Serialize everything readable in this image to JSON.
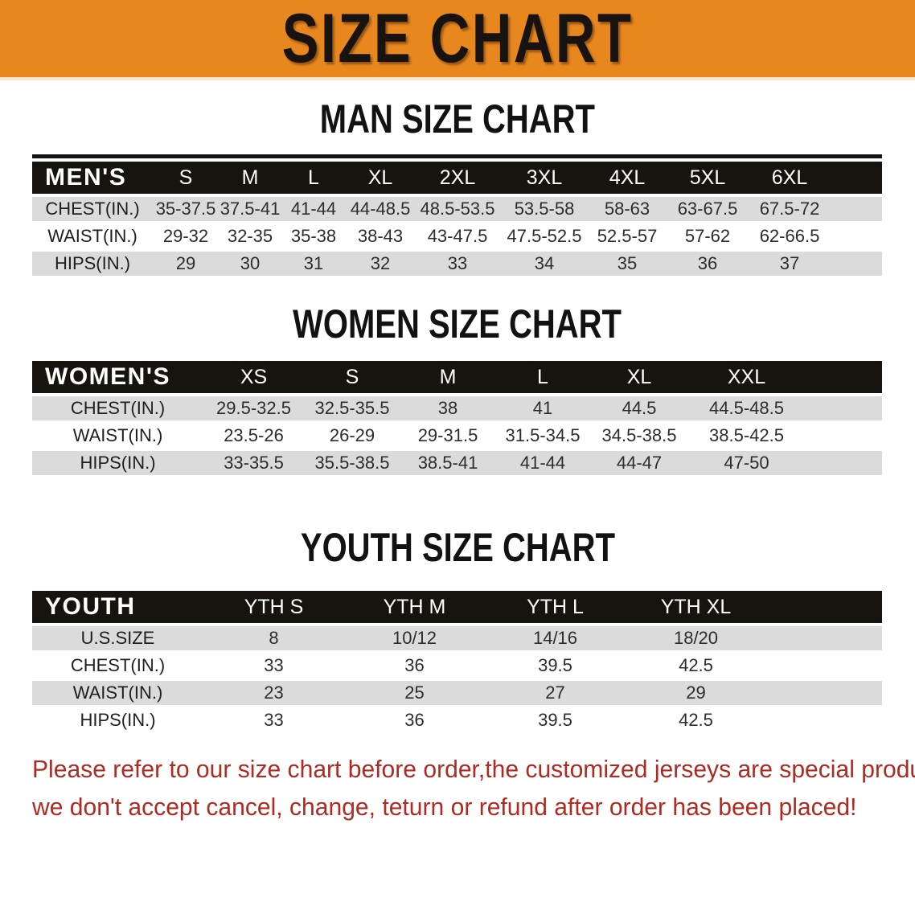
{
  "banner": {
    "title": "SIZE CHART"
  },
  "colors": {
    "banner_bg": "#E8871E",
    "header_band": "#17130F",
    "row_alt": "#DBDBDB",
    "footer_text": "#AD2B23"
  },
  "sections": [
    {
      "heading": "MAN SIZE CHART",
      "table": {
        "title": "MEN'S",
        "columns": [
          "S",
          "M",
          "L",
          "XL",
          "2XL",
          "3XL",
          "4XL",
          "5XL",
          "6XL"
        ],
        "rows": [
          {
            "label": "CHEST(IN.)",
            "values": [
              "35-37.5",
              "37.5-41",
              "41-44",
              "44-48.5",
              "48.5-53.5",
              "53.5-58",
              "58-63",
              "63-67.5",
              "67.5-72"
            ]
          },
          {
            "label": "WAIST(IN.)",
            "values": [
              "29-32",
              "32-35",
              "35-38",
              "38-43",
              "43-47.5",
              "47.5-52.5",
              "52.5-57",
              "57-62",
              "62-66.5"
            ]
          },
          {
            "label": "HIPS(IN.)",
            "values": [
              "29",
              "30",
              "31",
              "32",
              "33",
              "34",
              "35",
              "36",
              "37"
            ]
          }
        ]
      }
    },
    {
      "heading": "WOMEN SIZE CHART",
      "table": {
        "title": "WOMEN'S",
        "columns": [
          "XS",
          "S",
          "M",
          "L",
          "XL",
          "XXL"
        ],
        "rows": [
          {
            "label": "CHEST(IN.)",
            "values": [
              "29.5-32.5",
              "32.5-35.5",
              "38",
              "41",
              "44.5",
              "44.5-48.5"
            ]
          },
          {
            "label": "WAIST(IN.)",
            "values": [
              "23.5-26",
              "26-29",
              "29-31.5",
              "31.5-34.5",
              "34.5-38.5",
              "38.5-42.5"
            ]
          },
          {
            "label": "HIPS(IN.)",
            "values": [
              "33-35.5",
              "35.5-38.5",
              "38.5-41",
              "41-44",
              "44-47",
              "47-50"
            ]
          }
        ]
      }
    },
    {
      "heading": "YOUTH SIZE CHART",
      "table": {
        "title": "YOUTH",
        "columns": [
          "YTH S",
          "YTH M",
          "YTH L",
          "YTH XL"
        ],
        "rows": [
          {
            "label": "U.S.SIZE",
            "values": [
              "8",
              "10/12",
              "14/16",
              "18/20"
            ]
          },
          {
            "label": "CHEST(IN.)",
            "values": [
              "33",
              "36",
              "39.5",
              "42.5"
            ]
          },
          {
            "label": "WAIST(IN.)",
            "values": [
              "23",
              "25",
              "27",
              "29"
            ]
          },
          {
            "label": "HIPS(IN.)",
            "values": [
              "33",
              "36",
              "39.5",
              "42.5"
            ]
          }
        ]
      }
    }
  ],
  "footer": {
    "line1": "Please refer to our size chart before order,the customized jerseys are special products,",
    "line2": "we don't accept cancel, change, teturn or refund after order has been placed!"
  }
}
